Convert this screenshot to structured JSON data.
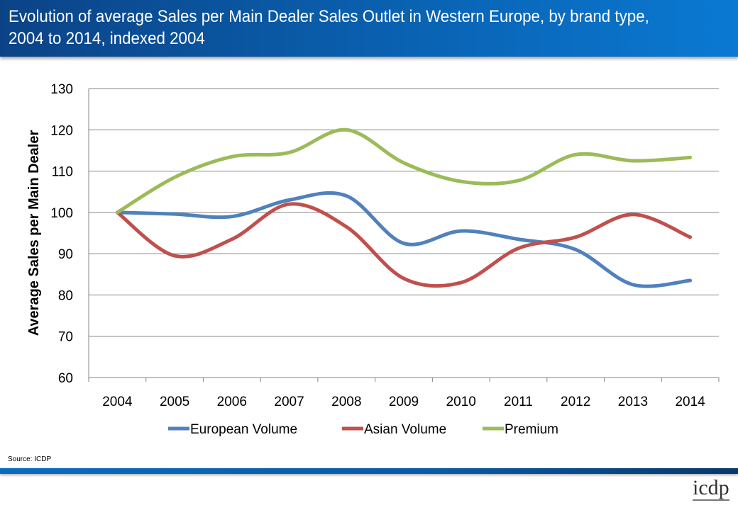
{
  "header": {
    "title": "Evolution of average Sales per Main Dealer Sales Outlet in Western Europe, by brand type, 2004 to 2014, indexed 2004"
  },
  "chart_data": {
    "type": "line",
    "title": "Evolution of average Sales per Main Dealer Sales Outlet in Western Europe, by brand type, 2004 to 2014, indexed 2004",
    "xlabel": "",
    "ylabel": "Average Sales per Main Dealer",
    "categories": [
      "2004",
      "2005",
      "2006",
      "2007",
      "2008",
      "2009",
      "2010",
      "2011",
      "2012",
      "2013",
      "2014"
    ],
    "ylim": [
      60,
      130
    ],
    "yticks": [
      60,
      70,
      80,
      90,
      100,
      110,
      120,
      130
    ],
    "grid": true,
    "legend": "bottom",
    "series": [
      {
        "name": "European Volume",
        "color": "#4f81bd",
        "values": [
          100,
          99.6,
          99,
          103,
          104,
          92.5,
          95.5,
          93.5,
          91,
          82.5,
          83.5
        ]
      },
      {
        "name": "Asian Volume",
        "color": "#c0504d",
        "values": [
          100,
          89.5,
          93.5,
          102,
          96.5,
          84,
          83,
          91.3,
          94,
          99.5,
          94
        ]
      },
      {
        "name": "Premium",
        "color": "#9bbb59",
        "values": [
          100,
          108.5,
          113.5,
          114.5,
          120,
          112,
          107.5,
          107.7,
          114,
          112.5,
          113.3
        ]
      }
    ]
  },
  "footer": {
    "source": "Source: ICDP",
    "logo": "icdp"
  }
}
